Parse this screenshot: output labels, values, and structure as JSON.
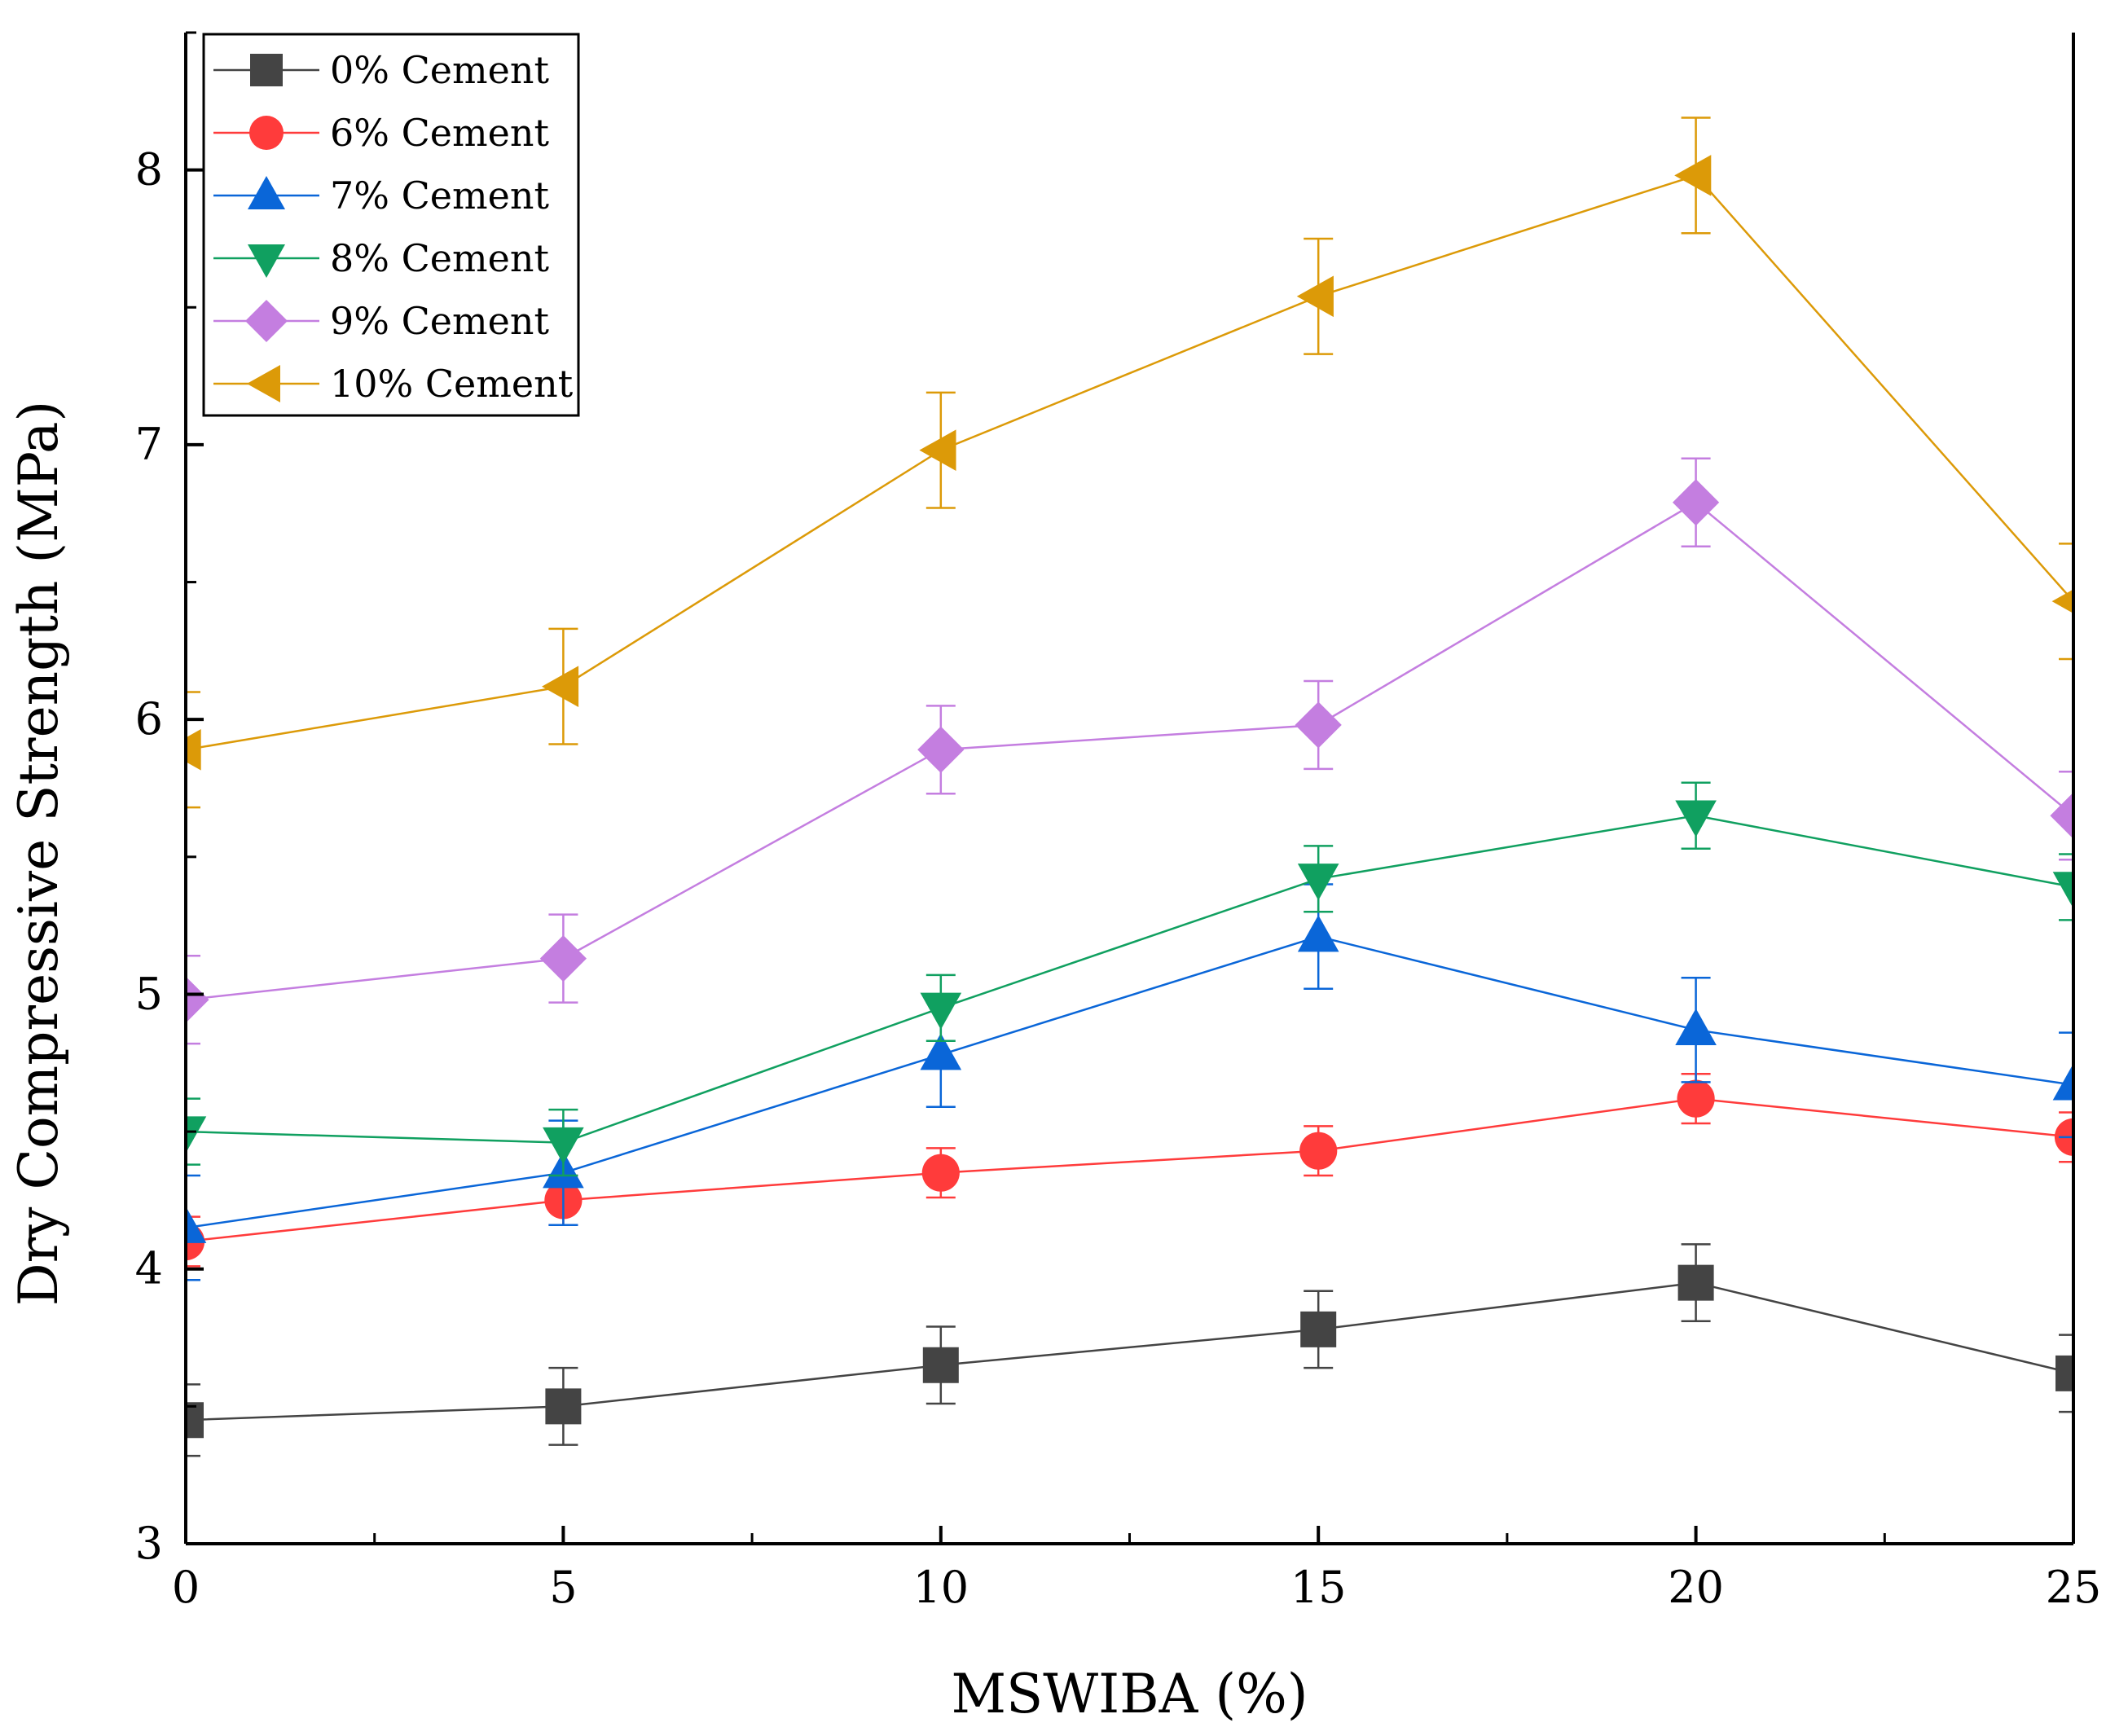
{
  "chart_data": {
    "type": "line",
    "title": "",
    "xlabel": "MSWIBA (%)",
    "ylabel": "Dry Compressive Strength (MPa)",
    "xlim": [
      0,
      25
    ],
    "ylim": [
      3,
      8.5
    ],
    "x_ticks": [
      0,
      5,
      10,
      15,
      20,
      25
    ],
    "y_ticks": [
      3,
      4,
      5,
      6,
      7,
      8
    ],
    "x_tick_labels": [
      "0",
      "5",
      "10",
      "15",
      "20",
      "25"
    ],
    "y_tick_labels": [
      "3",
      "4",
      "5",
      "6",
      "7",
      "8"
    ],
    "grid": false,
    "legend_position": "top-left",
    "x": [
      0,
      5,
      10,
      15,
      20,
      25
    ],
    "series": [
      {
        "name": "0% Cement",
        "color": "#444444",
        "marker": "square",
        "values": [
          3.45,
          3.5,
          3.65,
          3.78,
          3.95,
          3.62
        ],
        "errors": [
          0.13,
          0.14,
          0.14,
          0.14,
          0.14,
          0.14
        ]
      },
      {
        "name": "6% Cement",
        "color": "#ff3b3b",
        "marker": "circle",
        "values": [
          4.1,
          4.25,
          4.35,
          4.43,
          4.62,
          4.48
        ],
        "errors": [
          0.09,
          0.09,
          0.09,
          0.09,
          0.09,
          0.09
        ]
      },
      {
        "name": "7% Cement",
        "color": "#0a66d8",
        "marker": "triangle-up",
        "values": [
          4.15,
          4.35,
          4.78,
          5.21,
          4.87,
          4.67
        ],
        "errors": [
          0.19,
          0.19,
          0.19,
          0.19,
          0.19,
          0.19
        ]
      },
      {
        "name": "8% Cement",
        "color": "#10a060",
        "marker": "triangle-down",
        "values": [
          4.5,
          4.46,
          4.95,
          5.42,
          5.65,
          5.39
        ],
        "errors": [
          0.12,
          0.12,
          0.12,
          0.12,
          0.12,
          0.12
        ]
      },
      {
        "name": "9% Cement",
        "color": "#c47ee0",
        "marker": "diamond",
        "values": [
          4.98,
          5.13,
          5.89,
          5.98,
          6.79,
          5.65
        ],
        "errors": [
          0.16,
          0.16,
          0.16,
          0.16,
          0.16,
          0.16
        ]
      },
      {
        "name": "10% Cement",
        "color": "#dc9a08",
        "marker": "triangle-left",
        "values": [
          5.89,
          6.12,
          6.98,
          7.54,
          7.98,
          6.43
        ],
        "errors": [
          0.21,
          0.21,
          0.21,
          0.21,
          0.21,
          0.21
        ]
      }
    ]
  }
}
